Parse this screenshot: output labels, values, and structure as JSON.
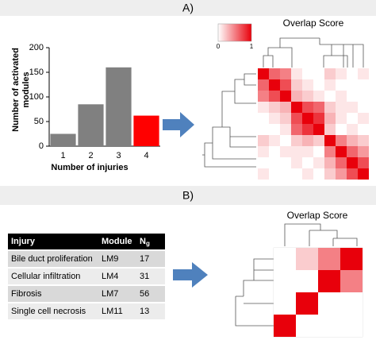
{
  "panel_a_label": "A)",
  "panel_b_label": "B)",
  "chart_data": {
    "type": "bar",
    "ylabel": "Number of activated modules",
    "xlabel": "Number of injuries",
    "categories": [
      "1",
      "2",
      "3",
      "4"
    ],
    "values": [
      25,
      85,
      160,
      62
    ],
    "colors": [
      "#808080",
      "#808080",
      "#808080",
      "#ff0000"
    ],
    "ylim": [
      0,
      200
    ],
    "yticks": [
      0,
      50,
      100,
      150,
      200
    ]
  },
  "heatmap_a": {
    "title": "Overlap Score",
    "colorbar_ticks": [
      0,
      1
    ],
    "color": "#e8000b",
    "values": [
      [
        1,
        0.6,
        0.5,
        0.1,
        0,
        0,
        0.2,
        0.1,
        0,
        0.1
      ],
      [
        0.6,
        1,
        0.7,
        0.2,
        0.1,
        0,
        0.1,
        0,
        0,
        0
      ],
      [
        0.5,
        0.7,
        1,
        0.3,
        0.2,
        0.1,
        0,
        0.1,
        0,
        0
      ],
      [
        0.1,
        0.2,
        0.3,
        1,
        0.7,
        0.6,
        0.2,
        0.1,
        0.1,
        0
      ],
      [
        0,
        0.1,
        0.2,
        0.7,
        1,
        0.8,
        0.3,
        0.1,
        0,
        0.1
      ],
      [
        0,
        0,
        0.1,
        0.6,
        0.8,
        1,
        0.2,
        0,
        0.1,
        0
      ],
      [
        0.2,
        0.1,
        0,
        0.2,
        0.3,
        0.2,
        1,
        0.5,
        0.3,
        0.2
      ],
      [
        0.1,
        0,
        0.1,
        0.1,
        0.1,
        0,
        0.5,
        1,
        0.6,
        0.4
      ],
      [
        0,
        0,
        0,
        0.1,
        0,
        0.1,
        0.3,
        0.6,
        1,
        0.7
      ],
      [
        0.1,
        0,
        0,
        0,
        0.1,
        0,
        0.2,
        0.4,
        0.7,
        1
      ]
    ]
  },
  "table": {
    "header": [
      "Injury",
      "Module",
      {
        "text": "N",
        "sub": "g"
      }
    ],
    "rows": [
      [
        "Bile duct proliferation",
        "LM9",
        17
      ],
      [
        "Cellular infiltration",
        "LM4",
        31
      ],
      [
        "Fibrosis",
        "LM7",
        56
      ],
      [
        "Single cell necrosis",
        "LM11",
        13
      ]
    ]
  },
  "heatmap_b": {
    "title": "Overlap Score",
    "values": [
      [
        0,
        0.2,
        0.5,
        1
      ],
      [
        0,
        0,
        1,
        0.5
      ],
      [
        0,
        1,
        0,
        0
      ],
      [
        1,
        0,
        0,
        0
      ]
    ]
  }
}
